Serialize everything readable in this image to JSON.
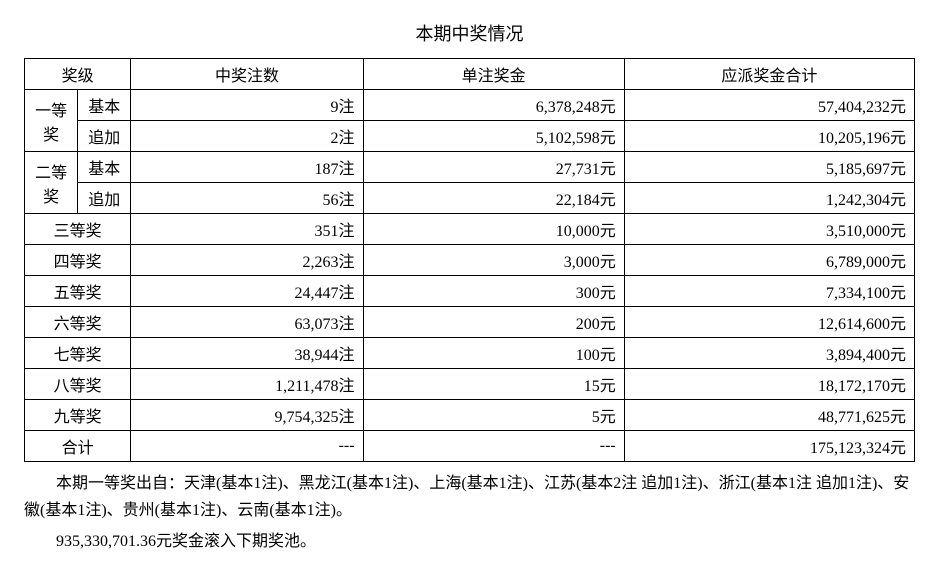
{
  "title": "本期中奖情况",
  "headers": {
    "level": "奖级",
    "count": "中奖注数",
    "unit_prize": "单注奖金",
    "total_prize": "应派奖金合计"
  },
  "sublabels": {
    "basic": "基本",
    "additional": "追加"
  },
  "rows": {
    "first": {
      "label": "一等奖",
      "basic": {
        "count": "9注",
        "unit": "6,378,248元",
        "total": "57,404,232元"
      },
      "additional": {
        "count": "2注",
        "unit": "5,102,598元",
        "total": "10,205,196元"
      }
    },
    "second": {
      "label": "二等奖",
      "basic": {
        "count": "187注",
        "unit": "27,731元",
        "total": "5,185,697元"
      },
      "additional": {
        "count": "56注",
        "unit": "22,184元",
        "total": "1,242,304元"
      }
    },
    "third": {
      "label": "三等奖",
      "count": "351注",
      "unit": "10,000元",
      "total": "3,510,000元"
    },
    "fourth": {
      "label": "四等奖",
      "count": "2,263注",
      "unit": "3,000元",
      "total": "6,789,000元"
    },
    "fifth": {
      "label": "五等奖",
      "count": "24,447注",
      "unit": "300元",
      "total": "7,334,100元"
    },
    "sixth": {
      "label": "六等奖",
      "count": "63,073注",
      "unit": "200元",
      "total": "12,614,600元"
    },
    "seventh": {
      "label": "七等奖",
      "count": "38,944注",
      "unit": "100元",
      "total": "3,894,400元"
    },
    "eighth": {
      "label": "八等奖",
      "count": "1,211,478注",
      "unit": "15元",
      "total": "18,172,170元"
    },
    "ninth": {
      "label": "九等奖",
      "count": "9,754,325注",
      "unit": "5元",
      "total": "48,771,625元"
    },
    "sum": {
      "label": "合计",
      "count": "---",
      "unit": "---",
      "total": "175,123,324元"
    }
  },
  "footer1": "本期一等奖出自：天津(基本1注)、黑龙江(基本1注)、上海(基本1注)、江苏(基本2注 追加1注)、浙江(基本1注 追加1注)、安徽(基本1注)、贵州(基本1注)、云南(基本1注)。",
  "footer2": "935,330,701.36元奖金滚入下期奖池。",
  "style": {
    "bg": "#ffffff",
    "border": "#000000",
    "text": "#000000",
    "fontsize_body": 16,
    "fontsize_title": 18,
    "col_widths": {
      "level": "11%",
      "sub": "8%",
      "num": "24%",
      "prize": "27%",
      "total": "30%"
    }
  }
}
